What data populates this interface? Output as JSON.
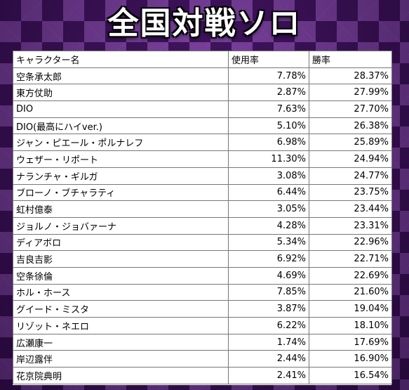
{
  "title": "全国対戦ソロ",
  "headers": {
    "name": "キャラクター名",
    "usage": "使用率",
    "win": "勝率"
  },
  "rows": [
    {
      "name": "空条承太郎",
      "usage": "7.78%",
      "win": "28.37%"
    },
    {
      "name": "東方仗助",
      "usage": "2.87%",
      "win": "27.99%"
    },
    {
      "name": "DIO",
      "usage": "7.63%",
      "win": "27.70%"
    },
    {
      "name": "DIO(最高にハイver.)",
      "usage": "5.10%",
      "win": "26.38%"
    },
    {
      "name": "ジャン・ピエール・ポルナレフ",
      "usage": "6.98%",
      "win": "25.89%"
    },
    {
      "name": "ウェザー・リポート",
      "usage": "11.30%",
      "win": "24.94%"
    },
    {
      "name": "ナランチャ・ギルガ",
      "usage": "3.08%",
      "win": "24.77%"
    },
    {
      "name": "ブローノ・ブチャラティ",
      "usage": "6.44%",
      "win": "23.75%"
    },
    {
      "name": "虹村億泰",
      "usage": "3.05%",
      "win": "23.44%"
    },
    {
      "name": "ジョルノ・ジョバァーナ",
      "usage": "4.28%",
      "win": "23.31%"
    },
    {
      "name": "ディアボロ",
      "usage": "5.34%",
      "win": "22.96%"
    },
    {
      "name": "吉良吉影",
      "usage": "6.92%",
      "win": "22.71%"
    },
    {
      "name": "空条徐倫",
      "usage": "4.69%",
      "win": "22.69%"
    },
    {
      "name": "ホル・ホース",
      "usage": "7.85%",
      "win": "21.60%"
    },
    {
      "name": "グイード・ミスタ",
      "usage": "3.87%",
      "win": "19.04%"
    },
    {
      "name": "リゾット・ネエロ",
      "usage": "6.22%",
      "win": "18.10%"
    },
    {
      "name": "広瀬康一",
      "usage": "1.74%",
      "win": "17.69%"
    },
    {
      "name": "岸辺露伴",
      "usage": "2.44%",
      "win": "16.90%"
    },
    {
      "name": "花京院典明",
      "usage": "2.41%",
      "win": "16.54%"
    }
  ]
}
